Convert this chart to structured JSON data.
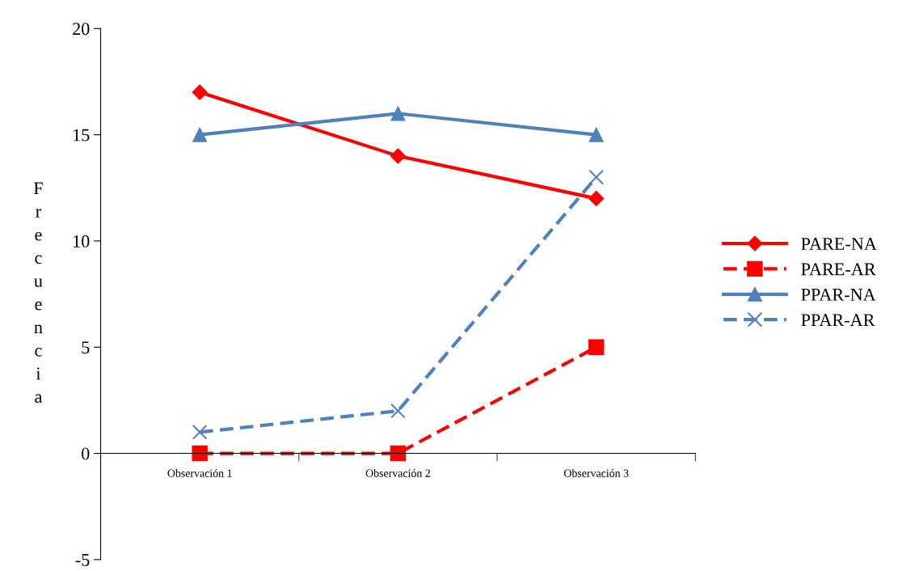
{
  "chart_data": {
    "type": "line",
    "ylabel": "Frecuencia",
    "categories": [
      "Observación 1",
      "Observación 2",
      "Observación 3"
    ],
    "series": [
      {
        "name": "PARE-NA",
        "color": "#ff0000",
        "values": [
          17,
          14,
          12
        ],
        "marker": "diamond",
        "line_style": "solid"
      },
      {
        "name": "PARE-AR",
        "color": "#ff0000",
        "values": [
          0,
          0,
          5
        ],
        "marker": "square",
        "line_style": "dashed"
      },
      {
        "name": "PPAR-NA",
        "color": "#4f81bd",
        "values": [
          15,
          16,
          15
        ],
        "marker": "triangle",
        "line_style": "solid"
      },
      {
        "name": "PPAR-AR",
        "color": "#4f81bd",
        "values": [
          1,
          2,
          13
        ],
        "marker": "cross",
        "line_style": "dashed"
      }
    ],
    "ylim": [
      -5,
      20
    ],
    "yticks": [
      -5,
      0,
      5,
      10,
      15,
      20
    ],
    "grid": false,
    "legend": "right"
  }
}
